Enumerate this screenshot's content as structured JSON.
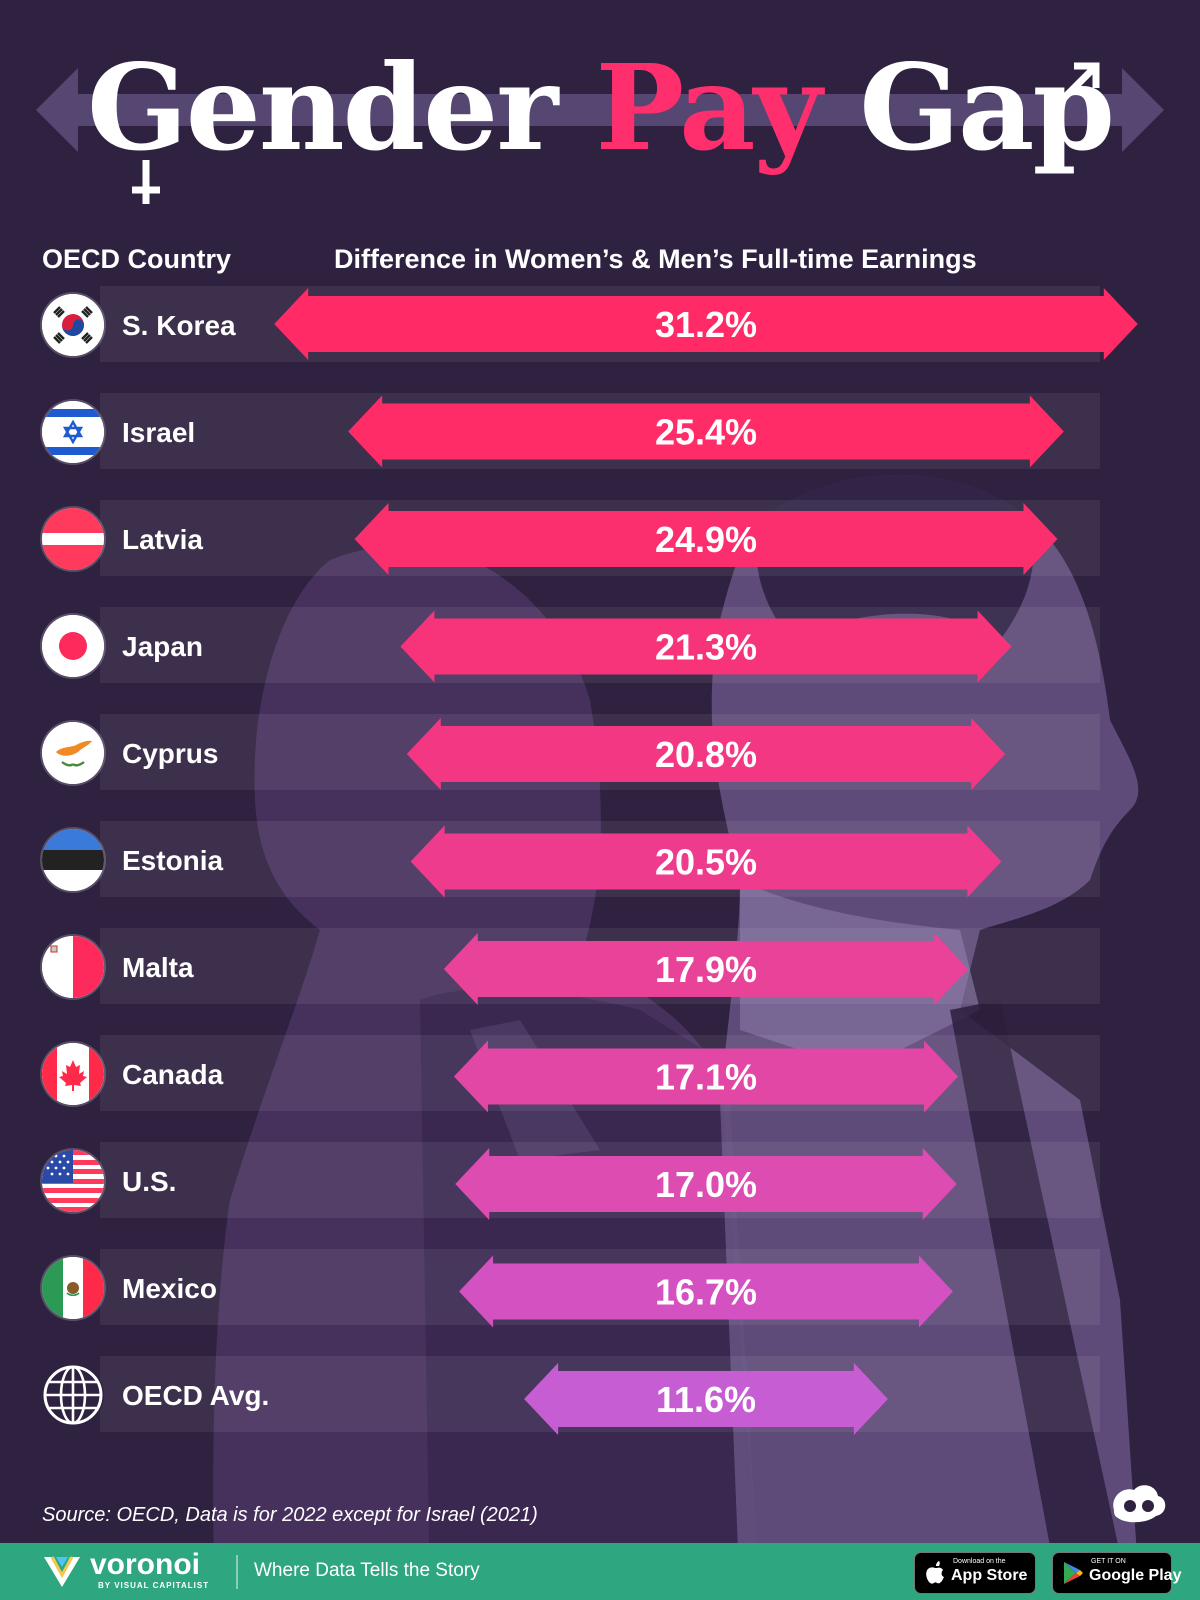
{
  "title": {
    "word1": "Gender",
    "word2": "Pay",
    "word3": "Gap"
  },
  "column_headers": {
    "left": "OECD Country",
    "right": "Difference in Women’s & Men’s Full-time Earnings"
  },
  "chart_data": {
    "type": "bar",
    "title": "Gender Pay Gap",
    "xlabel": "OECD Country",
    "ylabel": "Difference in Women’s & Men’s Full-time Earnings",
    "categories": [
      "S. Korea",
      "Israel",
      "Latvia",
      "Japan",
      "Cyprus",
      "Estonia",
      "Malta",
      "Canada",
      "U.S.",
      "Mexico",
      "OECD Avg."
    ],
    "values": [
      31.2,
      25.4,
      24.9,
      21.3,
      20.8,
      20.5,
      17.9,
      17.1,
      17.0,
      16.7,
      11.6
    ],
    "value_labels": [
      "31.2%",
      "25.4%",
      "24.9%",
      "21.3%",
      "20.8%",
      "20.5%",
      "17.9%",
      "17.1%",
      "17.0%",
      "16.7%",
      "11.6%"
    ],
    "orientation": "horizontal",
    "centered": true,
    "bar_colors": [
      "#ff2a66",
      "#ff2c68",
      "#fb2f6d",
      "#f7337a",
      "#f43783",
      "#ef3b8d",
      "#e84399",
      "#e247a6",
      "#dc4cb1",
      "#d351c1",
      "#c75dd3"
    ]
  },
  "flags": [
    "south-korea-flag-icon",
    "israel-flag-icon",
    "latvia-flag-icon",
    "japan-flag-icon",
    "cyprus-flag-icon",
    "estonia-flag-icon",
    "malta-flag-icon",
    "canada-flag-icon",
    "us-flag-icon",
    "mexico-flag-icon",
    "globe-icon"
  ],
  "source": "Source: OECD, Data is for 2022 except for Israel (2021)",
  "footer": {
    "brand": "voronoi",
    "brand_sub": "BY VISUAL CAPITALIST",
    "tagline": "Where Data Tells the Story",
    "app_store_small": "Download on the",
    "app_store_big": "App Store",
    "google_play_small": "GET IT ON",
    "google_play_big": "Google Play"
  },
  "colors": {
    "background": "#2f2140",
    "accent_pink": "#ff2f6e",
    "footer_green": "#2ea67f"
  }
}
